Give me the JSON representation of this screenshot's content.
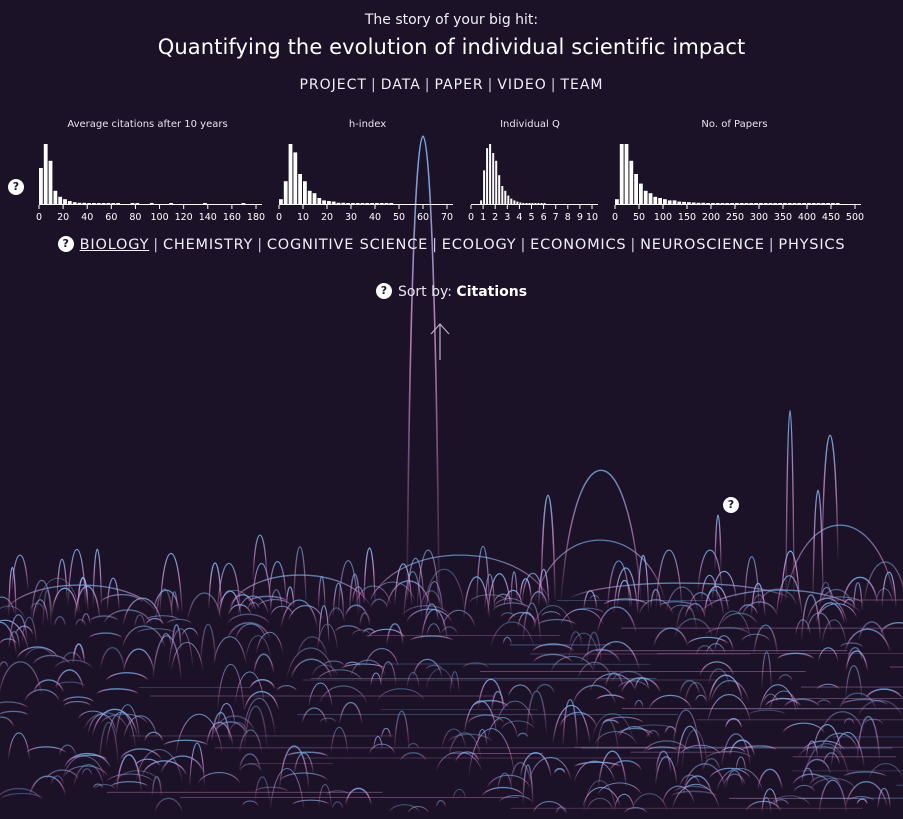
{
  "header": {
    "subtitle": "The story of your big hit:",
    "title": "Quantifying the evolution of individual scientific impact"
  },
  "nav": {
    "items": [
      "PROJECT",
      "DATA",
      "PAPER",
      "VIDEO",
      "TEAM"
    ]
  },
  "histograms": {
    "help": "?",
    "titles": [
      "Average citations after 10 years",
      "h-index",
      "Individual Q",
      "No. of Papers"
    ]
  },
  "fields": {
    "help": "?",
    "items": [
      "BIOLOGY",
      "CHEMISTRY",
      "COGNITIVE SCIENCE",
      "ECOLOGY",
      "ECONOMICS",
      "NEUROSCIENCE",
      "PHYSICS"
    ],
    "active": "BIOLOGY"
  },
  "sort": {
    "help": "?",
    "label": "Sort by:",
    "value": "Citations"
  },
  "visualization": {
    "help": "?",
    "scroll_icon": "up-arrow-icon"
  },
  "chart_data": [
    {
      "type": "bar",
      "title": "Average citations after 10 years",
      "xlim": [
        0,
        180
      ],
      "xticks": [
        "0",
        "20",
        "40",
        "60",
        "80",
        "100",
        "120",
        "140",
        "160",
        "180"
      ],
      "bin_width": 4,
      "values": [
        0.6,
        1.0,
        0.72,
        0.22,
        0.12,
        0.08,
        0.05,
        0.03,
        0.02,
        0.02,
        0.01,
        0.01,
        0.01,
        0.005,
        0.005,
        0.005,
        0.003,
        0,
        0,
        0.003,
        0.003,
        0,
        0,
        0.003,
        0,
        0,
        0,
        0.002,
        0,
        0,
        0,
        0,
        0,
        0,
        0.002,
        0,
        0,
        0,
        0,
        0,
        0,
        0,
        0.002
      ]
    },
    {
      "type": "bar",
      "title": "h-index",
      "xlim": [
        0,
        70
      ],
      "xticks": [
        "0",
        "10",
        "20",
        "30",
        "40",
        "50",
        "60",
        "70"
      ],
      "bin_width": 2,
      "values": [
        0.08,
        0.38,
        1.0,
        0.86,
        0.5,
        0.38,
        0.22,
        0.18,
        0.1,
        0.06,
        0.05,
        0.04,
        0.02,
        0.02,
        0.015,
        0.01,
        0.01,
        0.008,
        0.006,
        0.005,
        0.004,
        0.003,
        0.003,
        0.002
      ]
    },
    {
      "type": "bar",
      "title": "Individual Q",
      "xlim": [
        0,
        10
      ],
      "xticks": [
        "0",
        "1",
        "2",
        "3",
        "4",
        "5",
        "6",
        "7",
        "8",
        "9",
        "10"
      ],
      "bin_width": 0.25,
      "values": [
        0,
        0,
        0,
        0.06,
        0.56,
        0.93,
        1.0,
        0.85,
        0.72,
        0.48,
        0.3,
        0.22,
        0.14,
        0.09,
        0.06,
        0.04,
        0.025,
        0.015,
        0.01,
        0.008,
        0.005,
        0.004,
        0.003,
        0.002,
        0.002
      ]
    },
    {
      "type": "bar",
      "title": "No. of Papers",
      "xlim": [
        0,
        500
      ],
      "xticks": [
        "0",
        "50",
        "100",
        "150",
        "200",
        "250",
        "300",
        "350",
        "400",
        "450",
        "500"
      ],
      "bin_width": 10,
      "values": [
        0.08,
        1.0,
        1.0,
        0.72,
        0.5,
        0.34,
        0.22,
        0.18,
        0.12,
        0.1,
        0.08,
        0.06,
        0.06,
        0.04,
        0.035,
        0.03,
        0.025,
        0.02,
        0.02,
        0.015,
        0.012,
        0.012,
        0.01,
        0.008,
        0.008,
        0.006,
        0.006,
        0.005,
        0.005,
        0.004,
        0.004,
        0.004,
        0.003,
        0.003,
        0.003,
        0.002,
        0.002,
        0.002,
        0.002,
        0.002,
        0.002,
        0.002,
        0.002,
        0.002,
        0.002,
        0.002,
        0.002
      ]
    }
  ],
  "colors": {
    "background": "#1c1228",
    "arc_pink": "#d98fd0",
    "arc_blue": "#6fb3ea",
    "text": "#ffffff"
  }
}
